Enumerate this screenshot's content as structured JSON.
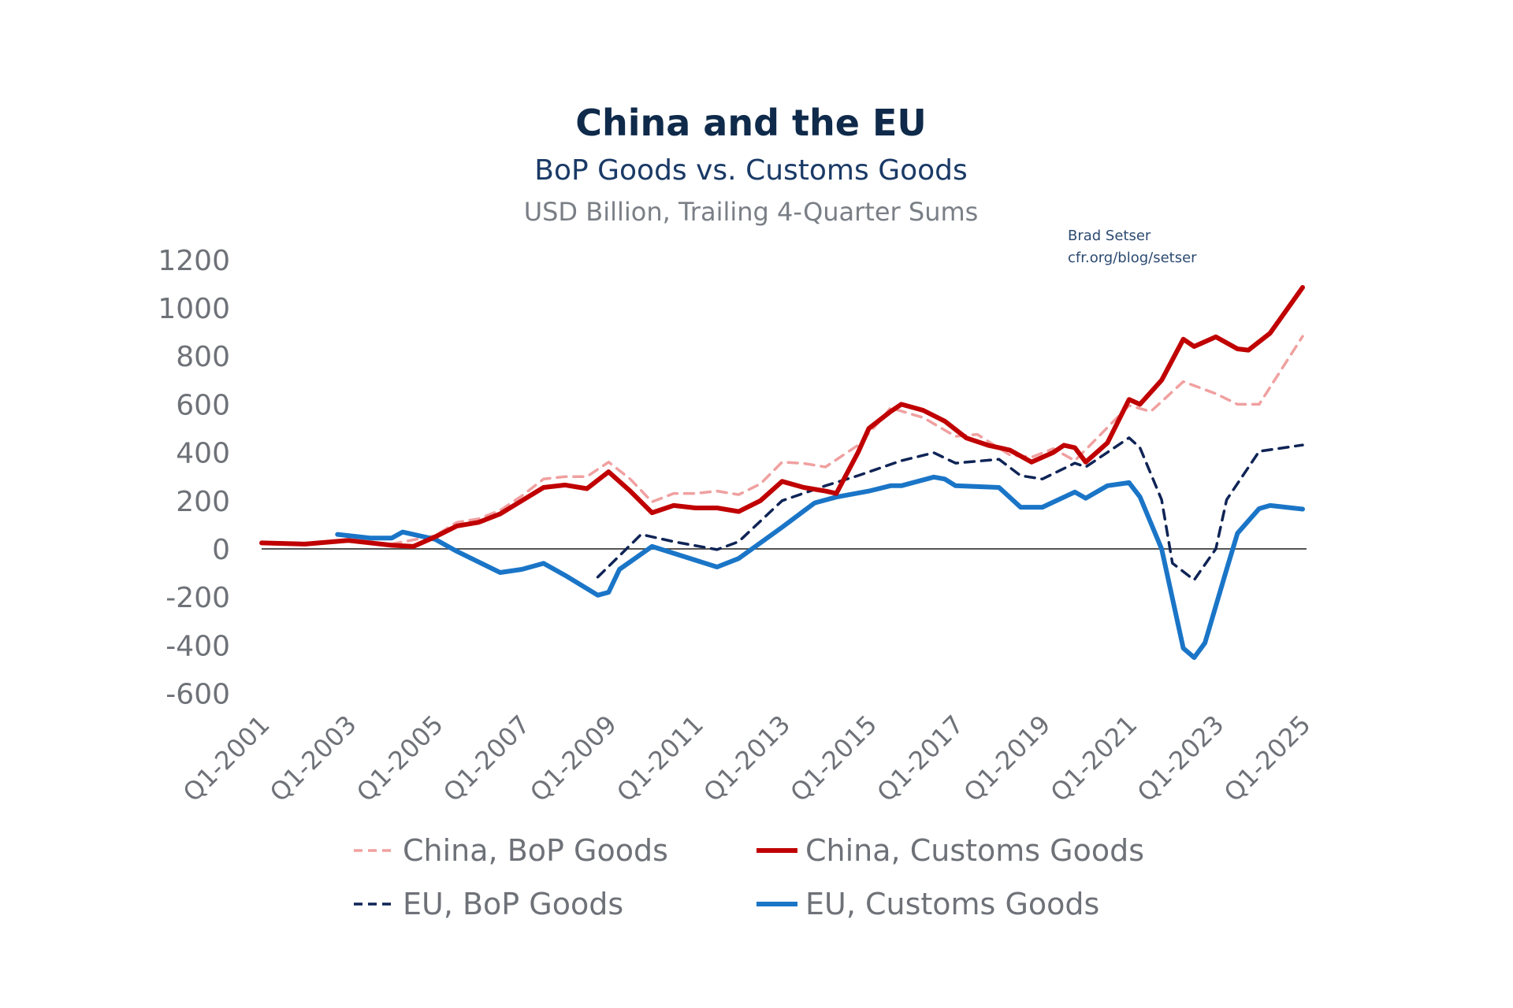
{
  "chart_data": {
    "type": "line",
    "title": "China and the EU",
    "subtitle": "BoP Goods vs. Customs Goods",
    "subtitle2": "USD Billion, Trailing 4-Quarter Sums",
    "credit": [
      "Brad Setser",
      "cfr.org/blog/setser"
    ],
    "xlabel": "",
    "ylabel": "",
    "ylim": [
      -600,
      1200
    ],
    "xlim": [
      "Q1-2001",
      "Q1-2025"
    ],
    "y_ticks": [
      "1200",
      "1000",
      "800",
      "600",
      "400",
      "200",
      "0",
      "-200",
      "-400",
      "-600"
    ],
    "x_ticks": [
      "Q1-2001",
      "Q1-2003",
      "Q1-2005",
      "Q1-2007",
      "Q1-2009",
      "Q1-2011",
      "Q1-2013",
      "Q1-2015",
      "Q1-2017",
      "Q1-2019",
      "Q1-2021",
      "Q1-2023",
      "Q1-2025"
    ],
    "grid": false,
    "zero_line": true,
    "legend_position": "bottom",
    "series": [
      {
        "name": "China, BoP Goods",
        "color": "#f0a0a0",
        "dash": true,
        "points": [
          [
            "Q1-2004",
            20
          ],
          [
            "Q1-2005",
            55
          ],
          [
            "Q3-2005",
            110
          ],
          [
            "Q1-2006",
            125
          ],
          [
            "Q3-2006",
            160
          ],
          [
            "Q1-2007",
            220
          ],
          [
            "Q3-2007",
            290
          ],
          [
            "Q1-2008",
            300
          ],
          [
            "Q3-2008",
            300
          ],
          [
            "Q1-2009",
            360
          ],
          [
            "Q3-2009",
            290
          ],
          [
            "Q1-2010",
            195
          ],
          [
            "Q3-2010",
            230
          ],
          [
            "Q1-2011",
            230
          ],
          [
            "Q3-2011",
            240
          ],
          [
            "Q1-2012",
            225
          ],
          [
            "Q3-2012",
            270
          ],
          [
            "Q1-2013",
            360
          ],
          [
            "Q3-2013",
            355
          ],
          [
            "Q1-2014",
            340
          ],
          [
            "Q3-2014",
            400
          ],
          [
            "Q4-2014",
            430
          ],
          [
            "Q2-2015",
            530
          ],
          [
            "Q3-2015",
            585
          ],
          [
            "Q2-2016",
            545
          ],
          [
            "Q1-2017",
            467
          ],
          [
            "Q3-2017",
            475
          ],
          [
            "Q2-2018",
            390
          ],
          [
            "Q4-2018",
            380
          ],
          [
            "Q2-2019",
            416
          ],
          [
            "Q4-2019",
            366
          ],
          [
            "Q1-2021",
            595
          ],
          [
            "Q3-2021",
            570
          ],
          [
            "Q2-2022",
            694
          ],
          [
            "Q1-2023",
            644
          ],
          [
            "Q3-2023",
            600
          ],
          [
            "Q1-2024",
            600
          ],
          [
            "Q1-2025",
            882
          ]
        ]
      },
      {
        "name": "China, Customs Goods",
        "color": "#c00000",
        "dash": false,
        "points": [
          [
            "Q1-2001",
            25
          ],
          [
            "Q1-2002",
            20
          ],
          [
            "Q1-2003",
            35
          ],
          [
            "Q1-2004",
            15
          ],
          [
            "Q3-2004",
            10
          ],
          [
            "Q1-2005",
            50
          ],
          [
            "Q3-2005",
            95
          ],
          [
            "Q1-2006",
            110
          ],
          [
            "Q3-2006",
            145
          ],
          [
            "Q1-2007",
            200
          ],
          [
            "Q3-2007",
            255
          ],
          [
            "Q1-2008",
            265
          ],
          [
            "Q3-2008",
            250
          ],
          [
            "Q1-2009",
            320
          ],
          [
            "Q3-2009",
            240
          ],
          [
            "Q1-2010",
            150
          ],
          [
            "Q3-2010",
            180
          ],
          [
            "Q1-2011",
            170
          ],
          [
            "Q3-2011",
            170
          ],
          [
            "Q1-2012",
            155
          ],
          [
            "Q3-2012",
            200
          ],
          [
            "Q1-2013",
            280
          ],
          [
            "Q3-2013",
            255
          ],
          [
            "Q1-2014",
            240
          ],
          [
            "Q2-2014",
            230
          ],
          [
            "Q4-2014",
            400
          ],
          [
            "Q1-2015",
            500
          ],
          [
            "Q3-2015",
            570
          ],
          [
            "Q4-2015",
            600
          ],
          [
            "Q2-2016",
            575
          ],
          [
            "Q4-2016",
            530
          ],
          [
            "Q2-2017",
            460
          ],
          [
            "Q4-2017",
            430
          ],
          [
            "Q2-2018",
            410
          ],
          [
            "Q4-2018",
            360
          ],
          [
            "Q2-2019",
            400
          ],
          [
            "Q3-2019",
            430
          ],
          [
            "Q4-2019",
            420
          ],
          [
            "Q1-2020",
            360
          ],
          [
            "Q3-2020",
            440
          ],
          [
            "Q1-2021",
            620
          ],
          [
            "Q2-2021",
            600
          ],
          [
            "Q4-2021",
            700
          ],
          [
            "Q2-2022",
            870
          ],
          [
            "Q3-2022",
            840
          ],
          [
            "Q1-2023",
            880
          ],
          [
            "Q3-2023",
            830
          ],
          [
            "Q4-2023",
            825
          ],
          [
            "Q2-2024",
            895
          ],
          [
            "Q1-2025",
            1085
          ]
        ]
      },
      {
        "name": "EU, BoP Goods",
        "color": "#0f2456",
        "dash": true,
        "points": [
          [
            "Q4-2008",
            -117
          ],
          [
            "Q4-2009",
            60
          ],
          [
            "Q3-2010",
            30
          ],
          [
            "Q3-2011",
            -3
          ],
          [
            "Q1-2012",
            30
          ],
          [
            "Q1-2013",
            200
          ],
          [
            "Q1-2014",
            262
          ],
          [
            "Q4-2014",
            304
          ],
          [
            "Q4-2015",
            366
          ],
          [
            "Q3-2016",
            399
          ],
          [
            "Q1-2017",
            356
          ],
          [
            "Q1-2018",
            372
          ],
          [
            "Q3-2018",
            304
          ],
          [
            "Q1-2019",
            290
          ],
          [
            "Q4-2019",
            356
          ],
          [
            "Q1-2020",
            340
          ],
          [
            "Q1-2021",
            461
          ],
          [
            "Q2-2021",
            420
          ],
          [
            "Q4-2021",
            204
          ],
          [
            "Q1-2022",
            -59
          ],
          [
            "Q3-2022",
            -129
          ],
          [
            "Q1-2023",
            0
          ],
          [
            "Q2-2023",
            204
          ],
          [
            "Q1-2024",
            405
          ],
          [
            "Q1-2025",
            431
          ]
        ]
      },
      {
        "name": "EU, Customs Goods",
        "color": "#1a75c7",
        "dash": false,
        "points": [
          [
            "Q4-2002",
            60
          ],
          [
            "Q3-2003",
            45
          ],
          [
            "Q1-2004",
            45
          ],
          [
            "Q2-2004",
            70
          ],
          [
            "Q1-2005",
            40
          ],
          [
            "Q3-2005",
            -10
          ],
          [
            "Q3-2006",
            -98
          ],
          [
            "Q1-2007",
            -85
          ],
          [
            "Q3-2007",
            -60
          ],
          [
            "Q1-2008",
            -110
          ],
          [
            "Q4-2008",
            -192
          ],
          [
            "Q1-2009",
            -180
          ],
          [
            "Q2-2009",
            -85
          ],
          [
            "Q1-2010",
            10
          ],
          [
            "Q3-2011",
            -75
          ],
          [
            "Q1-2012",
            -40
          ],
          [
            "Q1-2013",
            90
          ],
          [
            "Q4-2013",
            191
          ],
          [
            "Q2-2014",
            215
          ],
          [
            "Q1-2015",
            240
          ],
          [
            "Q3-2015",
            262
          ],
          [
            "Q4-2015",
            262
          ],
          [
            "Q3-2016",
            298
          ],
          [
            "Q4-2016",
            290
          ],
          [
            "Q1-2017",
            262
          ],
          [
            "Q1-2018",
            255
          ],
          [
            "Q3-2018",
            173
          ],
          [
            "Q1-2019",
            173
          ],
          [
            "Q4-2019",
            236
          ],
          [
            "Q1-2020",
            210
          ],
          [
            "Q3-2020",
            262
          ],
          [
            "Q1-2021",
            275
          ],
          [
            "Q2-2021",
            216
          ],
          [
            "Q4-2021",
            0
          ],
          [
            "Q2-2022",
            -412
          ],
          [
            "Q3-2022",
            -451
          ],
          [
            "Q4-2022",
            -390
          ],
          [
            "Q2-2023",
            -85
          ],
          [
            "Q3-2023",
            65
          ],
          [
            "Q1-2024",
            167
          ],
          [
            "Q2-2024",
            180
          ],
          [
            "Q1-2025",
            165
          ]
        ]
      }
    ]
  }
}
